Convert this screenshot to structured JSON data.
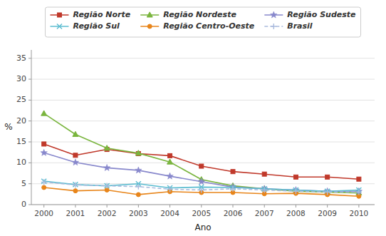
{
  "chart_data": {
    "type": "line",
    "xlabel": "Ano",
    "ylabel": "%",
    "x": [
      2000,
      2001,
      2002,
      2003,
      2004,
      2005,
      2006,
      2007,
      2008,
      2009,
      2010
    ],
    "xlim": [
      1999.6,
      2010.5
    ],
    "xticks": [
      2000,
      2001,
      2002,
      2003,
      2004,
      2005,
      2006,
      2007,
      2008,
      2009,
      2010
    ],
    "ylim": [
      0,
      37
    ],
    "yticks": [
      0,
      5,
      10,
      15,
      20,
      25,
      30,
      35
    ],
    "grid": true,
    "legend": "top",
    "series": [
      {
        "name": "Região Norte",
        "color": "#c0392b",
        "marker": "square",
        "line_style": "solid",
        "values": [
          14.5,
          11.8,
          13.2,
          12.2,
          11.7,
          9.2,
          7.9,
          7.3,
          6.6,
          6.6,
          6.1
        ]
      },
      {
        "name": "Região Nordeste",
        "color": "#7ab53e",
        "marker": "triangle",
        "line_style": "solid",
        "values": [
          21.8,
          16.8,
          13.5,
          12.3,
          10.2,
          6.0,
          4.5,
          3.8,
          3.2,
          3.0,
          2.8
        ]
      },
      {
        "name": "Região Sudeste",
        "color": "#8888cc",
        "marker": "star",
        "line_style": "solid",
        "values": [
          12.4,
          10.1,
          8.8,
          8.2,
          6.8,
          5.5,
          4.2,
          3.8,
          3.5,
          3.2,
          3.2
        ]
      },
      {
        "name": "Região Sul",
        "color": "#5bbcd0",
        "marker": "x",
        "line_style": "solid",
        "values": [
          5.6,
          4.8,
          4.5,
          5.0,
          4.0,
          4.2,
          4.1,
          3.8,
          3.5,
          3.2,
          3.5
        ]
      },
      {
        "name": "Região Centro-Oeste",
        "color": "#e8851a",
        "marker": "circle",
        "line_style": "solid",
        "values": [
          4.1,
          3.3,
          3.5,
          2.4,
          3.1,
          2.9,
          2.9,
          2.6,
          2.7,
          2.4,
          2.0
        ]
      },
      {
        "name": "Brasil",
        "color": "#aabbdd",
        "marker": "plus",
        "line_style": "dashed",
        "values": [
          5.4,
          4.7,
          4.5,
          4.3,
          3.7,
          3.5,
          3.8,
          3.5,
          3.2,
          3.0,
          3.0
        ]
      }
    ]
  }
}
